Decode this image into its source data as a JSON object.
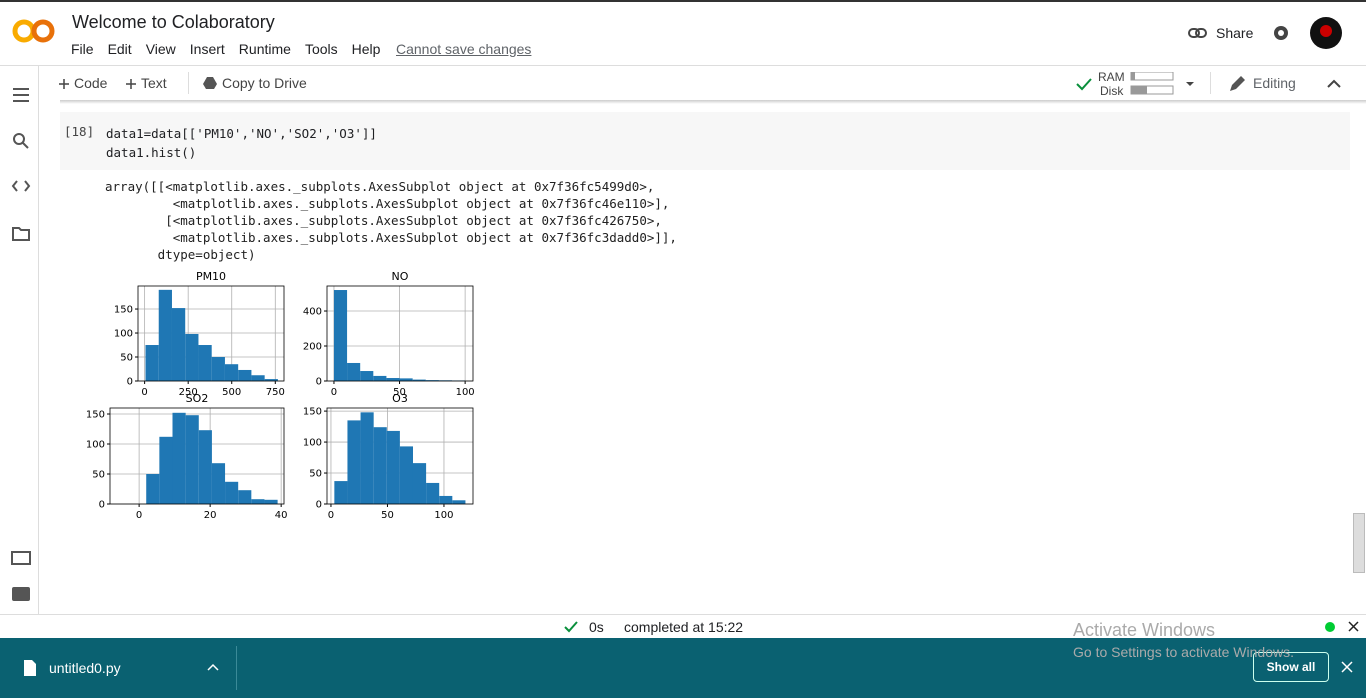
{
  "header": {
    "title": "Welcome to Colaboratory",
    "menu": [
      "File",
      "Edit",
      "View",
      "Insert",
      "Runtime",
      "Tools",
      "Help"
    ],
    "save_note": "Cannot save changes",
    "share": "Share"
  },
  "toolbar": {
    "code": "Code",
    "text": "Text",
    "copy": "Copy to Drive",
    "ram": "RAM",
    "disk": "Disk",
    "editing": "Editing"
  },
  "cell": {
    "prompt": "[18]",
    "code": [
      "data1=data[['PM10','NO','SO2','O3']]",
      "data1.hist()"
    ],
    "output": [
      "array([[<matplotlib.axes._subplots.AxesSubplot object at 0x7f36fc5499d0>,",
      "         <matplotlib.axes._subplots.AxesSubplot object at 0x7f36fc46e110>],",
      "        [<matplotlib.axes._subplots.AxesSubplot object at 0x7f36fc426750>,",
      "         <matplotlib.axes._subplots.AxesSubplot object at 0x7f36fc3dadd0>]],",
      "       dtype=object)"
    ]
  },
  "chart_data": [
    {
      "type": "histogram",
      "title": "PM10",
      "color": "#1f77b4",
      "grid": true,
      "bins": [
        5,
        81,
        157,
        233,
        309,
        385,
        461,
        537,
        613,
        689,
        765
      ],
      "values": [
        75,
        190,
        152,
        98,
        75,
        50,
        35,
        23,
        12,
        4
      ],
      "xlim": [
        -38,
        800
      ],
      "ylim": [
        0,
        198
      ],
      "xticks": [
        0,
        250,
        500,
        750
      ],
      "yticks": [
        0,
        50,
        100,
        150
      ]
    },
    {
      "type": "histogram",
      "title": "NO",
      "color": "#1f77b4",
      "grid": true,
      "bins": [
        0,
        10,
        20,
        30,
        40,
        50,
        60,
        70,
        80,
        90,
        100
      ],
      "values": [
        520,
        103,
        57,
        29,
        17,
        15,
        8,
        5,
        4,
        3
      ],
      "xlim": [
        -5.3,
        106
      ],
      "ylim": [
        0,
        543
      ],
      "xticks": [
        0,
        50,
        100
      ],
      "yticks": [
        0,
        200,
        400
      ]
    },
    {
      "type": "histogram",
      "title": "SO2",
      "color": "#1f77b4",
      "grid": true,
      "bins": [
        2,
        5.7,
        9.4,
        13.1,
        16.8,
        20.5,
        24.2,
        27.9,
        31.6,
        35.3,
        39
      ],
      "values": [
        50,
        112,
        152,
        148,
        123,
        68,
        37,
        23,
        8,
        7
      ],
      "xlim": [
        -8.2,
        40.8
      ],
      "ylim": [
        0,
        160
      ],
      "xticks": [
        0,
        20,
        40
      ],
      "yticks": [
        0,
        50,
        100,
        150
      ]
    },
    {
      "type": "histogram",
      "title": "O3",
      "color": "#1f77b4",
      "grid": true,
      "bins": [
        3,
        14.6,
        26.2,
        37.8,
        49.4,
        61,
        72.6,
        84.2,
        95.8,
        107.4,
        119
      ],
      "values": [
        37,
        135,
        148,
        124,
        118,
        93,
        66,
        34,
        13,
        6
      ],
      "xlim": [
        -3.5,
        125.7
      ],
      "ylim": [
        0,
        155
      ],
      "xticks": [
        0,
        50,
        100
      ],
      "yticks": [
        0,
        50,
        100,
        150
      ]
    }
  ],
  "status": {
    "time": "0s",
    "completed": "completed at 15:22"
  },
  "watermark": {
    "title": "Activate Windows",
    "text": "Go to Settings to activate Windows."
  },
  "downloads": {
    "file": "untitled0.py",
    "show_all": "Show all"
  }
}
